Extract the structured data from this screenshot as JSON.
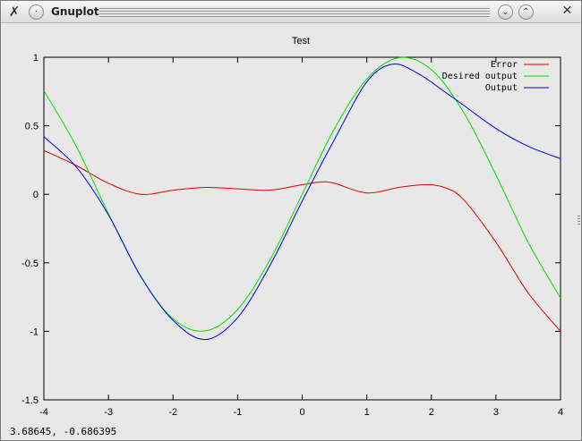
{
  "window": {
    "title": "Gnuplot",
    "icon": "gnuplot-x-icon",
    "menu_icon": "window-menu-icon",
    "minimize_icon": "chevron-down-icon",
    "maximize_icon": "chevron-up-icon",
    "close_icon": "close-icon"
  },
  "status": {
    "coordinates": "3.68645, -0.686395"
  },
  "chart_data": {
    "type": "line",
    "title": "Test",
    "xlabel": "",
    "ylabel": "",
    "xlim": [
      -4,
      4
    ],
    "ylim": [
      -1.5,
      1
    ],
    "xticks": [
      "-4",
      "-3",
      "-2",
      "-1",
      "0",
      "1",
      "2",
      "3",
      "4"
    ],
    "yticks": [
      "1",
      "0.5",
      "0",
      "-0.5",
      "-1",
      "-1.5"
    ],
    "xtick_values": [
      -4,
      -3,
      -2,
      -1,
      0,
      1,
      2,
      3,
      4
    ],
    "ytick_values": [
      1,
      0.5,
      0,
      -0.5,
      -1,
      -1.5
    ],
    "grid": false,
    "legend_position": "top-right",
    "background": "#e8e8e8",
    "series": [
      {
        "name": "Error",
        "color": "#e00000",
        "x": [
          -4,
          -3.5,
          -3,
          -2.5,
          -2,
          -1.5,
          -1,
          -0.5,
          0,
          0.3,
          0.5,
          1,
          1.5,
          1.9,
          2.2,
          2.5,
          3,
          3.5,
          4
        ],
        "y": [
          0.32,
          0.21,
          0.08,
          0.0,
          0.03,
          0.05,
          0.04,
          0.03,
          0.07,
          0.09,
          0.08,
          0.01,
          0.05,
          0.07,
          0.05,
          -0.04,
          -0.35,
          -0.72,
          -1.0
        ]
      },
      {
        "name": "Desired output",
        "color": "#00e000",
        "x": [
          -4,
          -3.5,
          -3,
          -2.5,
          -2,
          -1.5,
          -1,
          -0.5,
          0,
          0.5,
          1,
          1.5,
          2,
          2.5,
          3,
          3.5,
          4
        ],
        "y": [
          0.757,
          0.351,
          -0.141,
          -0.598,
          -0.909,
          -0.997,
          -0.841,
          -0.479,
          0.0,
          0.479,
          0.841,
          0.997,
          0.909,
          0.598,
          0.141,
          -0.351,
          -0.757
        ]
      },
      {
        "name": "Output",
        "color": "#0000e0",
        "x": [
          -4,
          -3.5,
          -3,
          -2.5,
          -2,
          -1.5,
          -1,
          -0.5,
          0,
          0.5,
          1,
          1.4,
          1.8,
          2.2,
          2.5,
          3,
          3.5,
          4
        ],
        "y": [
          0.42,
          0.2,
          -0.15,
          -0.6,
          -0.92,
          -1.06,
          -0.9,
          -0.52,
          -0.05,
          0.4,
          0.82,
          0.95,
          0.88,
          0.75,
          0.65,
          0.48,
          0.35,
          0.26
        ]
      }
    ]
  }
}
